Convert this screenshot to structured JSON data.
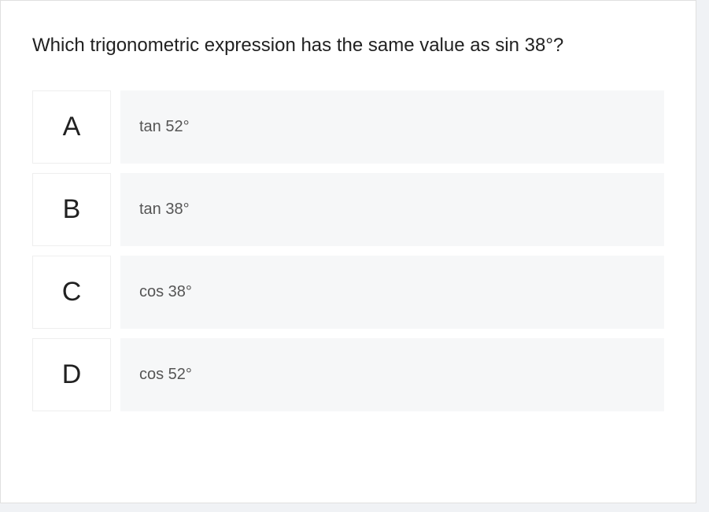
{
  "question": {
    "text": "Which trigonometric expression has the same value as sin 38°?"
  },
  "options": [
    {
      "letter": "A",
      "label": "tan 52°"
    },
    {
      "letter": "B",
      "label": "tan 38°"
    },
    {
      "letter": "C",
      "label": "cos 38°"
    },
    {
      "letter": "D",
      "label": "cos 52°"
    }
  ],
  "styling": {
    "card_background": "#ffffff",
    "page_background": "#f0f2f5",
    "question_color": "#212121",
    "option_letter_bg": "#ffffff",
    "option_letter_border": "#eeeeee",
    "option_text_bg": "#f6f7f8",
    "option_text_color": "#555555",
    "question_fontsize": 24,
    "letter_fontsize": 34,
    "option_fontsize": 20
  }
}
